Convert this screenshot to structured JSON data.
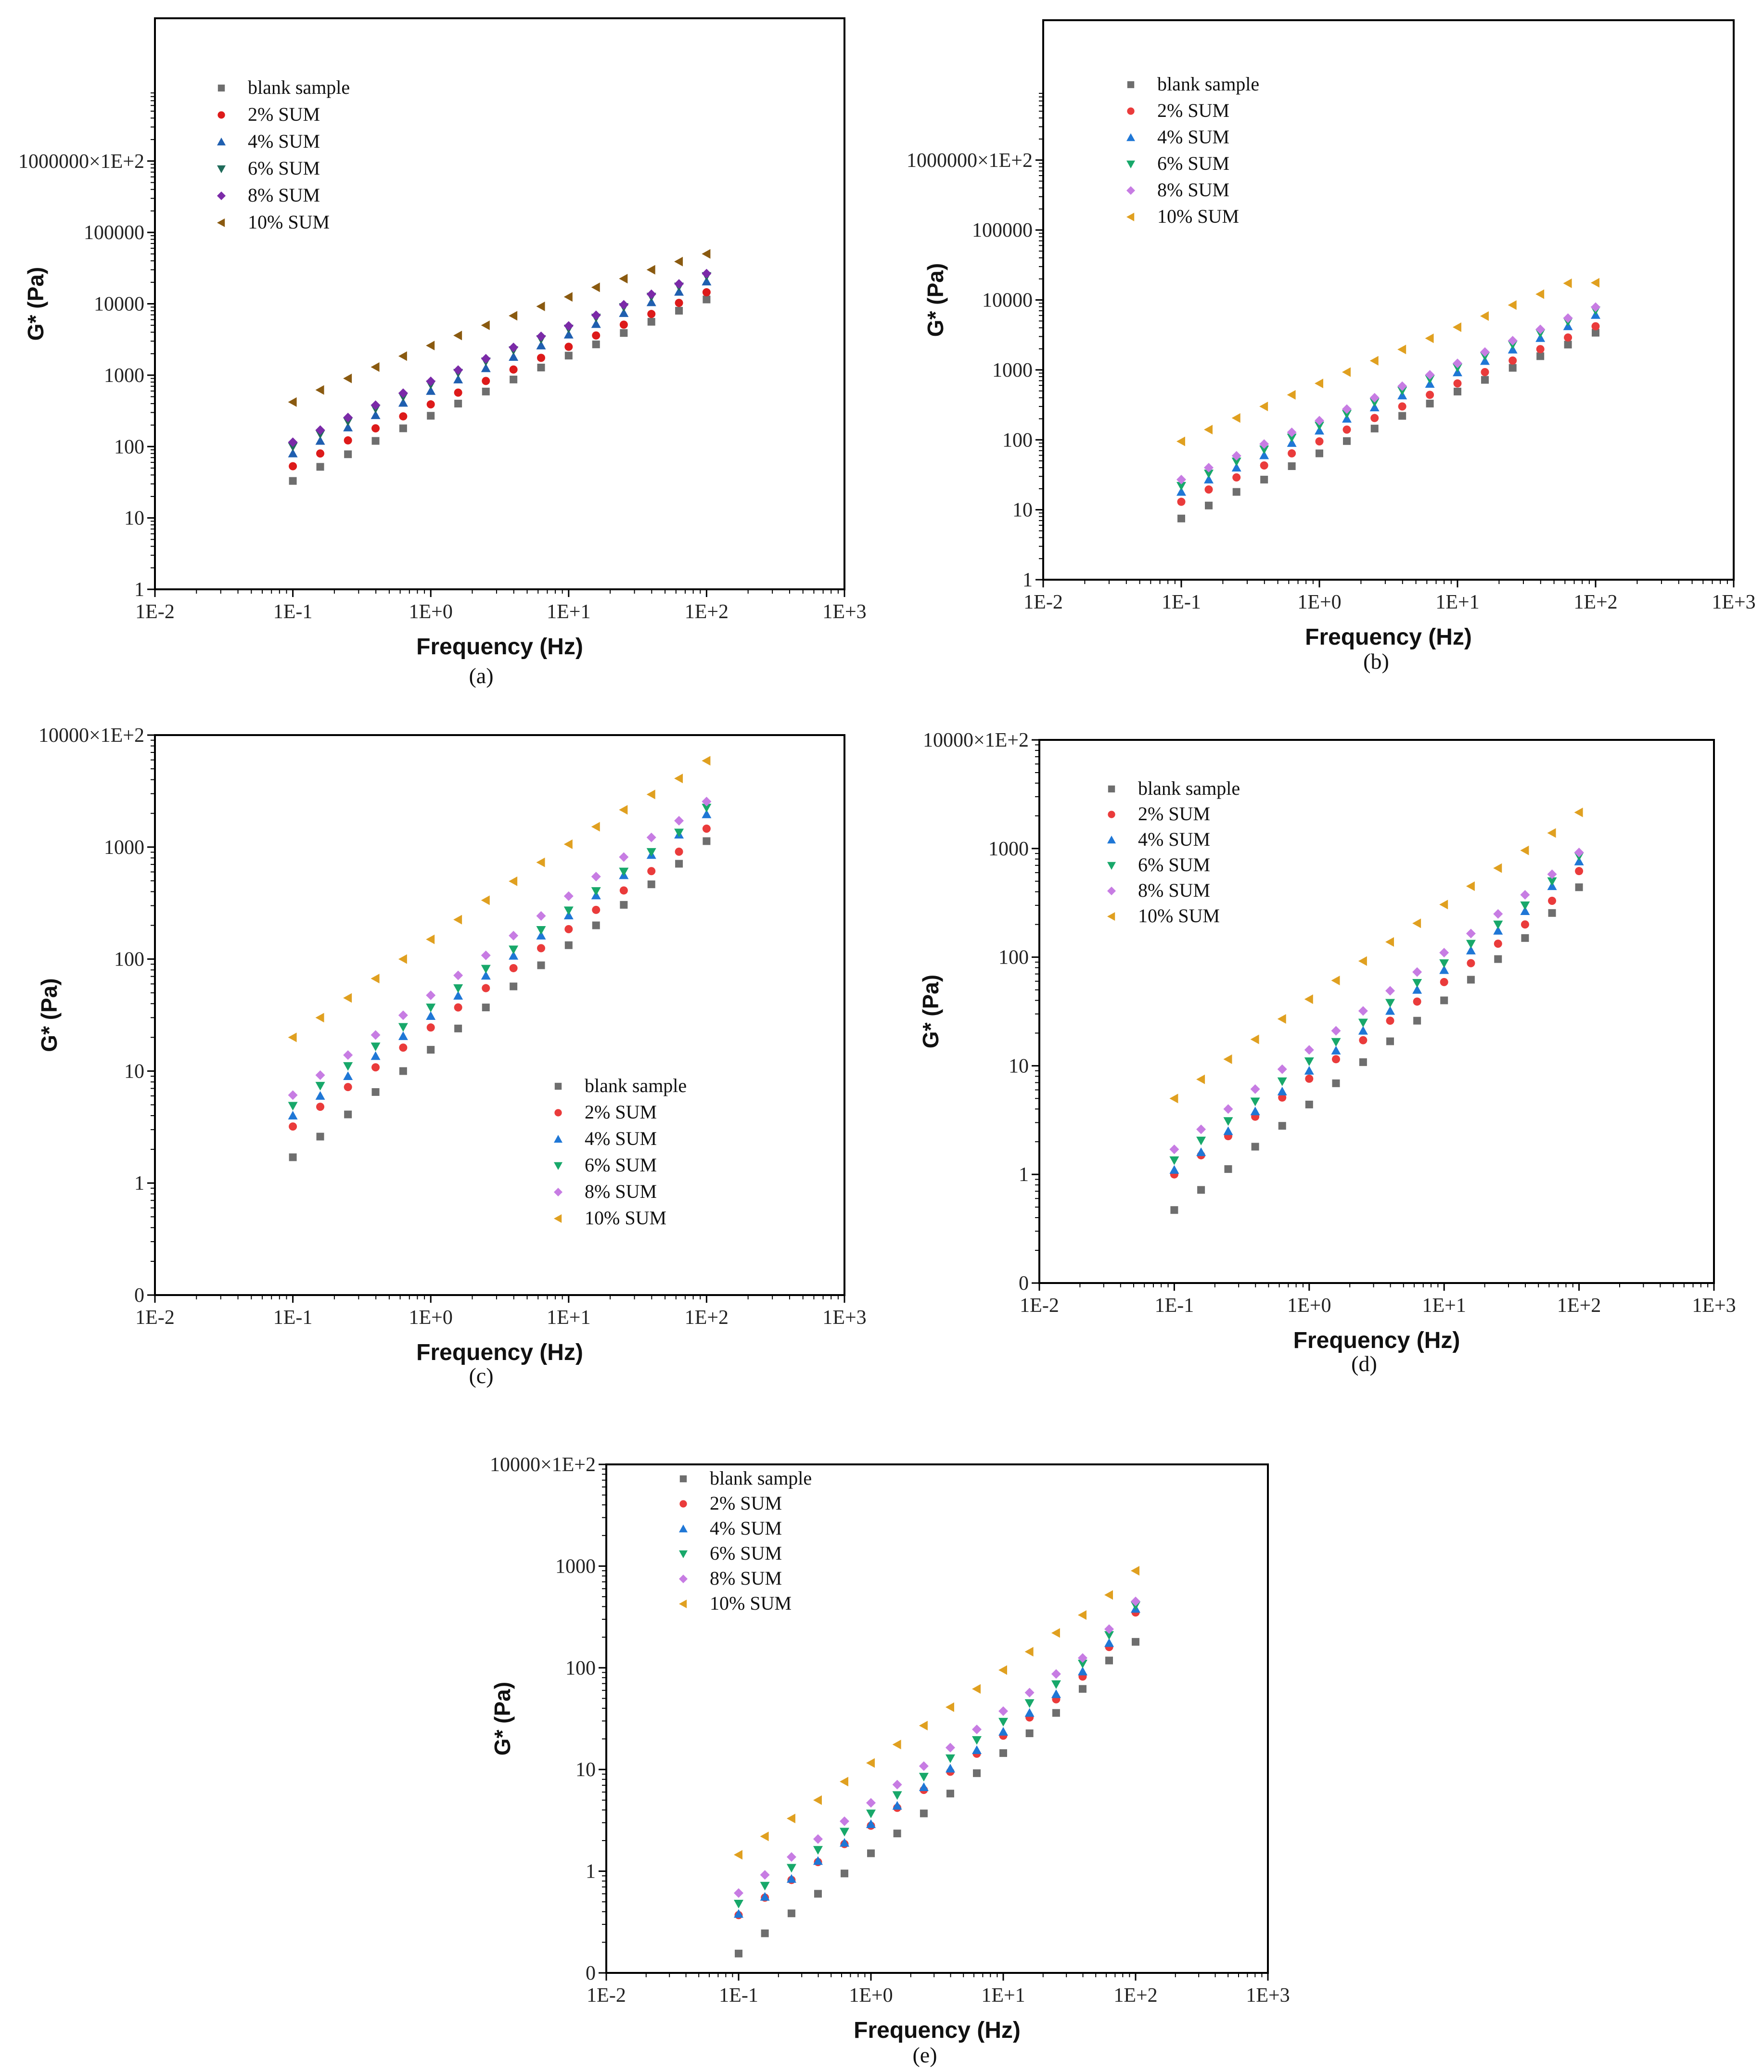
{
  "colors": {
    "blank sample": "#6e6e6e",
    "2% SUM": "#ea3b3b",
    "4% SUM": "#1f77d6",
    "6% SUM": "#18a86a",
    "8% SUM": "#c77ce3",
    "10% SUM": "#e0a020"
  },
  "panel_a_colors": {
    "blank sample": "#6e6e6e",
    "2% SUM": "#dd1a1a",
    "4% SUM": "#1f5fb0",
    "6% SUM": "#1f6b5a",
    "8% SUM": "#7b2aa8",
    "10% SUM": "#8a5a10"
  },
  "chart_data": [
    {
      "panel": "(a)",
      "type": "scatter",
      "xlabel": "Frequency (Hz)",
      "ylabel": "G* (Pa)",
      "xscale": "log",
      "yscale": "log",
      "xlim": [
        0.01,
        1000
      ],
      "ylim": [
        1,
        100000000
      ],
      "x_ticks": [
        "1E-2",
        "1E-1",
        "1E+0",
        "1E+1",
        "1E+2",
        "1E+3"
      ],
      "y_ticks": [
        "1",
        "10",
        "100",
        "1000",
        "10000",
        "100000",
        "1000000×1E+2"
      ],
      "legend_position": "top-left",
      "x": [
        0.1,
        0.158,
        0.251,
        0.398,
        0.631,
        1,
        1.58,
        2.51,
        3.98,
        6.31,
        10,
        15.8,
        25.1,
        39.8,
        63.1,
        100
      ],
      "series": [
        {
          "name": "blank sample",
          "marker": "square",
          "values": [
            33,
            52,
            78,
            120,
            180,
            270,
            400,
            590,
            870,
            1280,
            1880,
            2700,
            3900,
            5600,
            8000,
            11500
          ]
        },
        {
          "name": "2% SUM",
          "marker": "circle",
          "values": [
            53,
            80,
            122,
            180,
            265,
            390,
            570,
            830,
            1200,
            1750,
            2500,
            3600,
            5100,
            7200,
            10300,
            14500
          ]
        },
        {
          "name": "4% SUM",
          "marker": "triangle-up",
          "values": [
            80,
            120,
            185,
            275,
            410,
            600,
            870,
            1250,
            1800,
            2600,
            3700,
            5200,
            7400,
            10500,
            14700,
            20500
          ]
        },
        {
          "name": "6% SUM",
          "marker": "triangle-down",
          "values": [
            100,
            150,
            225,
            340,
            500,
            740,
            1080,
            1560,
            2240,
            3200,
            4500,
            6400,
            9000,
            12600,
            17500,
            24500
          ]
        },
        {
          "name": "8% SUM",
          "marker": "diamond",
          "values": [
            115,
            170,
            255,
            380,
            560,
            820,
            1180,
            1700,
            2450,
            3500,
            4900,
            6900,
            9700,
            13600,
            19000,
            26500
          ]
        },
        {
          "name": "10% SUM",
          "marker": "triangle-left",
          "values": [
            420,
            620,
            900,
            1300,
            1850,
            2600,
            3600,
            5000,
            6800,
            9200,
            12500,
            17000,
            22500,
            30000,
            39000,
            50000
          ]
        }
      ]
    },
    {
      "panel": "(b)",
      "type": "scatter",
      "xlabel": "Frequency (Hz)",
      "ylabel": "G* (Pa)",
      "xscale": "log",
      "yscale": "log",
      "xlim": [
        0.01,
        1000
      ],
      "ylim": [
        1,
        100000000
      ],
      "x_ticks": [
        "1E-2",
        "1E-1",
        "1E+0",
        "1E+1",
        "1E+2",
        "1E+3"
      ],
      "y_ticks": [
        "1",
        "10",
        "100",
        "1000",
        "10000",
        "100000",
        "1000000×1E+2"
      ],
      "legend_position": "top-left",
      "x": [
        0.1,
        0.158,
        0.251,
        0.398,
        0.631,
        1,
        1.58,
        2.51,
        3.98,
        6.31,
        10,
        15.8,
        25.1,
        39.8,
        63.1,
        100
      ],
      "series": [
        {
          "name": "blank sample",
          "marker": "square",
          "values": [
            7.5,
            11.5,
            18,
            27,
            42,
            64,
            96,
            145,
            220,
            330,
            490,
            720,
            1070,
            1570,
            2300,
            3400
          ]
        },
        {
          "name": "2% SUM",
          "marker": "circle",
          "values": [
            13,
            19.5,
            29,
            43,
            64,
            95,
            140,
            205,
            300,
            440,
            640,
            930,
            1360,
            1980,
            2900,
            4200
          ]
        },
        {
          "name": "4% SUM",
          "marker": "triangle-up",
          "values": [
            18,
            27,
            40,
            60,
            90,
            135,
            200,
            290,
            430,
            630,
            920,
            1340,
            1950,
            2850,
            4200,
            6100
          ]
        },
        {
          "name": "6% SUM",
          "marker": "triangle-down",
          "values": [
            22,
            33,
            49,
            73,
            108,
            160,
            235,
            345,
            505,
            740,
            1080,
            1580,
            2300,
            3350,
            4900,
            7100
          ]
        },
        {
          "name": "8% SUM",
          "marker": "diamond",
          "values": [
            27,
            40,
            59,
            87,
            128,
            188,
            275,
            400,
            585,
            850,
            1240,
            1800,
            2620,
            3800,
            5500,
            7900
          ]
        },
        {
          "name": "10% SUM",
          "marker": "triangle-left",
          "values": [
            95,
            140,
            205,
            300,
            440,
            640,
            930,
            1350,
            1960,
            2830,
            4080,
            5880,
            8450,
            12100,
            17300,
            17600
          ]
        }
      ]
    },
    {
      "panel": "(c)",
      "type": "scatter",
      "xlabel": "Frequency (Hz)",
      "ylabel": "G* (Pa)",
      "xscale": "log",
      "yscale": "log",
      "xlim": [
        0.01,
        1000
      ],
      "ylim": [
        0.1,
        10000
      ],
      "x_ticks": [
        "1E-2",
        "1E-1",
        "1E+0",
        "1E+1",
        "1E+2",
        "1E+3"
      ],
      "y_ticks": [
        "0",
        "1",
        "10",
        "100",
        "1000",
        "10000×1E+2"
      ],
      "legend_position": "bottom-right",
      "x": [
        0.1,
        0.158,
        0.251,
        0.398,
        0.631,
        1,
        1.58,
        2.51,
        3.98,
        6.31,
        10,
        15.8,
        25.1,
        39.8,
        63.1,
        100
      ],
      "series": [
        {
          "name": "blank sample",
          "marker": "square",
          "values": [
            1.7,
            2.6,
            4.1,
            6.5,
            10,
            15.5,
            24,
            37,
            57,
            88,
            133,
            200,
            305,
            465,
            710,
            1130
          ]
        },
        {
          "name": "2% SUM",
          "marker": "circle",
          "values": [
            3.2,
            4.8,
            7.2,
            10.8,
            16.2,
            24.5,
            37,
            55,
            83,
            125,
            185,
            275,
            410,
            610,
            910,
            1460
          ]
        },
        {
          "name": "4% SUM",
          "marker": "triangle-up",
          "values": [
            4,
            6,
            9,
            13.6,
            20.5,
            31,
            47,
            71,
            107,
            162,
            245,
            370,
            560,
            850,
            1290,
            1960
          ]
        },
        {
          "name": "6% SUM",
          "marker": "triangle-down",
          "values": [
            4.9,
            7.4,
            11.1,
            16.6,
            24.8,
            37,
            55,
            82,
            122,
            182,
            272,
            405,
            605,
            905,
            1350,
            2250
          ]
        },
        {
          "name": "8% SUM",
          "marker": "diamond",
          "values": [
            6.1,
            9.2,
            13.9,
            21,
            31.5,
            47.5,
            71.5,
            108,
            162,
            243,
            365,
            545,
            815,
            1220,
            1720,
            2550
          ]
        },
        {
          "name": "10% SUM",
          "marker": "triangle-left",
          "values": [
            20,
            30,
            45,
            67,
            100,
            150,
            225,
            335,
            495,
            730,
            1060,
            1520,
            2150,
            2950,
            4100,
            5900
          ]
        }
      ]
    },
    {
      "panel": "(d)",
      "type": "scatter",
      "xlabel": "Frequency (Hz)",
      "ylabel": "G* (Pa)",
      "xscale": "log",
      "yscale": "log",
      "xlim": [
        0.01,
        1000
      ],
      "ylim": [
        0.1,
        10000
      ],
      "x_ticks": [
        "1E-2",
        "1E-1",
        "1E+0",
        "1E+1",
        "1E+2",
        "1E+3"
      ],
      "y_ticks": [
        "0",
        "1",
        "10",
        "100",
        "1000",
        "10000×1E+2"
      ],
      "legend_position": "top-left",
      "x": [
        0.1,
        0.158,
        0.251,
        0.398,
        0.631,
        1,
        1.58,
        2.51,
        3.98,
        6.31,
        10,
        15.8,
        25.1,
        39.8,
        63.1,
        100
      ],
      "series": [
        {
          "name": "blank sample",
          "marker": "square",
          "values": [
            0.47,
            0.72,
            1.12,
            1.8,
            2.8,
            4.4,
            6.9,
            10.8,
            16.8,
            26,
            40,
            62,
            96,
            150,
            255,
            440
          ]
        },
        {
          "name": "2% SUM",
          "marker": "circle",
          "values": [
            1.0,
            1.5,
            2.25,
            3.4,
            5.1,
            7.6,
            11.5,
            17.2,
            26,
            39,
            59,
            88,
            133,
            200,
            330,
            620
          ]
        },
        {
          "name": "4% SUM",
          "marker": "triangle-up",
          "values": [
            1.1,
            1.6,
            2.5,
            3.8,
            5.8,
            9,
            13.8,
            21,
            32,
            50,
            76,
            115,
            175,
            265,
            450,
            760
          ]
        },
        {
          "name": "6% SUM",
          "marker": "triangle-down",
          "values": [
            1.35,
            2.05,
            3.1,
            4.7,
            7.2,
            11,
            16.6,
            25,
            38,
            58,
            88,
            133,
            200,
            300,
            500,
            850
          ]
        },
        {
          "name": "8% SUM",
          "marker": "diamond",
          "values": [
            1.7,
            2.6,
            4.0,
            6.1,
            9.3,
            14,
            21,
            32,
            49,
            73,
            110,
            165,
            250,
            375,
            580,
            920
          ]
        },
        {
          "name": "10% SUM",
          "marker": "triangle-left",
          "values": [
            5,
            7.5,
            11.5,
            17.5,
            27,
            41,
            61,
            92,
            138,
            205,
            305,
            450,
            660,
            960,
            1390,
            2150
          ]
        }
      ]
    },
    {
      "panel": "(e)",
      "type": "scatter",
      "xlabel": "Frequency (Hz)",
      "ylabel": "G* (Pa)",
      "xscale": "log",
      "yscale": "log",
      "xlim": [
        0.01,
        1000
      ],
      "ylim": [
        0.1,
        10000
      ],
      "x_ticks": [
        "1E-2",
        "1E-1",
        "1E+0",
        "1E+1",
        "1E+2",
        "1E+3"
      ],
      "y_ticks": [
        "0",
        "1",
        "10",
        "100",
        "1000",
        "10000×1E+2"
      ],
      "legend_position": "top-left",
      "x": [
        0.1,
        0.158,
        0.251,
        0.398,
        0.631,
        1,
        1.58,
        2.51,
        3.98,
        6.31,
        10,
        15.8,
        25.1,
        39.8,
        63.1,
        100
      ],
      "series": [
        {
          "name": "blank sample",
          "marker": "square",
          "values": [
            0.155,
            0.245,
            0.385,
            0.6,
            0.95,
            1.5,
            2.35,
            3.7,
            5.8,
            9.2,
            14.5,
            22.7,
            36,
            62,
            118,
            180
          ]
        },
        {
          "name": "2% SUM",
          "marker": "circle",
          "values": [
            0.37,
            0.55,
            0.82,
            1.23,
            1.85,
            2.8,
            4.2,
            6.3,
            9.5,
            14.3,
            21.5,
            32.5,
            49,
            82,
            160,
            350
          ]
        },
        {
          "name": "4% SUM",
          "marker": "triangle-up",
          "values": [
            0.38,
            0.56,
            0.84,
            1.26,
            1.9,
            2.9,
            4.4,
            6.7,
            10.2,
            15.5,
            23.5,
            36,
            55,
            92,
            175,
            380
          ]
        },
        {
          "name": "6% SUM",
          "marker": "triangle-down",
          "values": [
            0.48,
            0.72,
            1.08,
            1.62,
            2.45,
            3.7,
            5.6,
            8.5,
            12.9,
            19.5,
            29.5,
            45,
            69,
            110,
            210,
            410
          ]
        },
        {
          "name": "8% SUM",
          "marker": "diamond",
          "values": [
            0.61,
            0.92,
            1.38,
            2.07,
            3.1,
            4.7,
            7.1,
            10.8,
            16.4,
            24.8,
            37.5,
            57,
            87,
            125,
            240,
            450
          ]
        },
        {
          "name": "10% SUM",
          "marker": "triangle-left",
          "values": [
            1.45,
            2.2,
            3.3,
            5.0,
            7.6,
            11.6,
            17.6,
            27,
            41,
            62,
            95,
            144,
            220,
            330,
            520,
            900
          ]
        }
      ]
    }
  ]
}
